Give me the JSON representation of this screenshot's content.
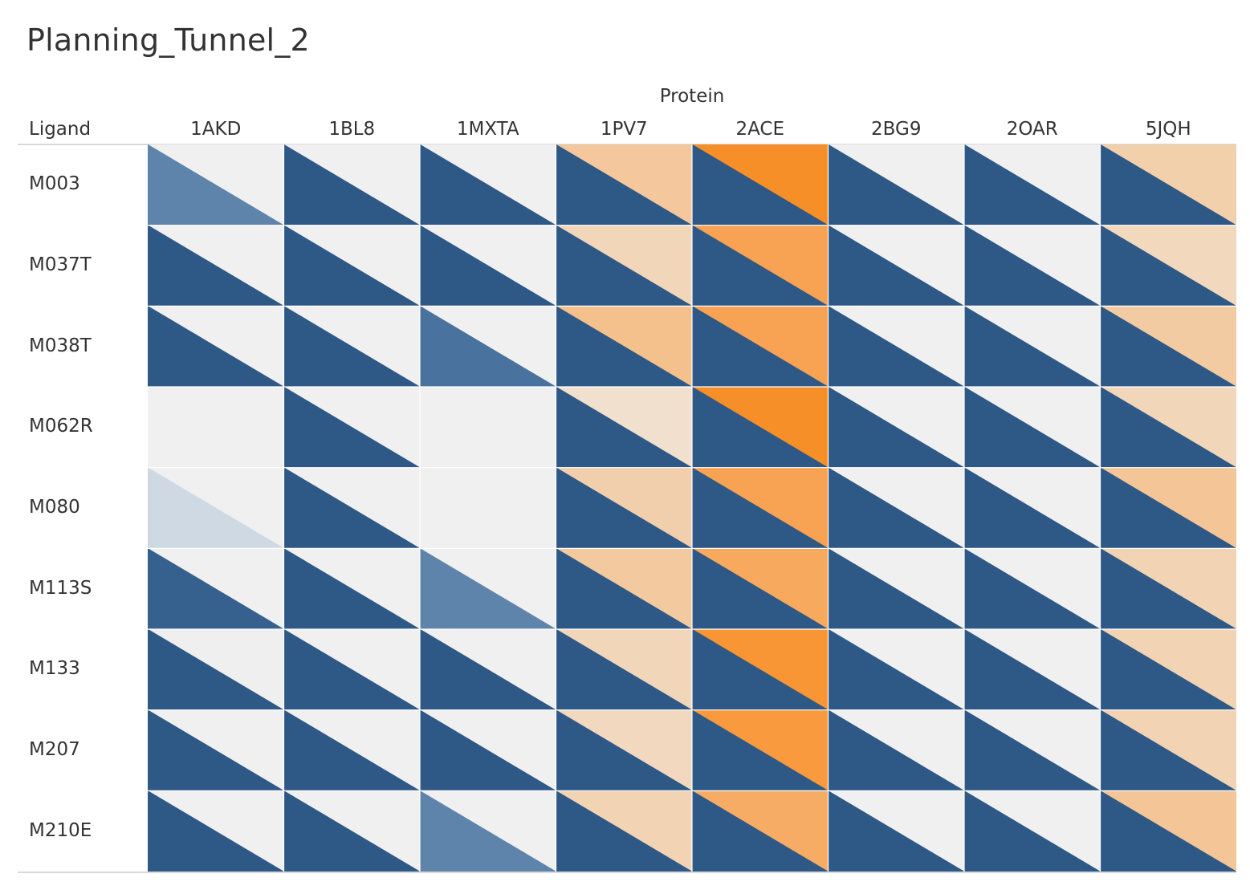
{
  "chart_data": {
    "type": "heatmap",
    "title": "Planning_Tunnel_2",
    "column_header": "Protein",
    "row_header": "Ligand",
    "columns": [
      "1AKD",
      "1BL8",
      "1MXTA",
      "1PV7",
      "2ACE",
      "2BG9",
      "2OAR",
      "5JQH"
    ],
    "rows": [
      "M003",
      "M037T",
      "M038T",
      "M062R",
      "M080",
      "M113S",
      "M133",
      "M207",
      "M210E"
    ],
    "cell_shape": "split diagonally: upper-right triangle = background, lower-left triangle = mark",
    "colors": {
      "blue_full": "#2e5886",
      "blue_medium": "#4a729e",
      "blue_light": "#5f84ab",
      "blue_pale": "#cfd9e3",
      "cell_background": "#f0f0f0",
      "orange_full": "#f78f29",
      "orange_strong": "#f8a052",
      "orange_medium": "#f4c08b",
      "orange_light": "#f2cda5",
      "orange_pale": "#f2dcc4",
      "orange_palest": "#f1e3d5"
    },
    "cells": [
      [
        {
          "upper": "#f0f0f0",
          "lower": "#5f84ab"
        },
        {
          "upper": "#f0f0f0",
          "lower": "#2e5886"
        },
        {
          "upper": "#f0f0f0",
          "lower": "#2e5886"
        },
        {
          "upper": "#f4c79c",
          "lower": "#2e5886"
        },
        {
          "upper": "#f78f29",
          "lower": "#2e5886"
        },
        {
          "upper": "#f0f0f0",
          "lower": "#2e5886"
        },
        {
          "upper": "#f0f0f0",
          "lower": "#2e5886"
        },
        {
          "upper": "#f2d0ac",
          "lower": "#2e5886"
        }
      ],
      [
        {
          "upper": "#f0f0f0",
          "lower": "#2e5886"
        },
        {
          "upper": "#f0f0f0",
          "lower": "#2e5886"
        },
        {
          "upper": "#f0f0f0",
          "lower": "#2e5886"
        },
        {
          "upper": "#f2d6ba",
          "lower": "#2e5886"
        },
        {
          "upper": "#f8a253",
          "lower": "#2e5886"
        },
        {
          "upper": "#f0f0f0",
          "lower": "#2e5886"
        },
        {
          "upper": "#f0f0f0",
          "lower": "#2e5886"
        },
        {
          "upper": "#f2d8bd",
          "lower": "#2e5886"
        }
      ],
      [
        {
          "upper": "#f0f0f0",
          "lower": "#2e5886"
        },
        {
          "upper": "#f0f0f0",
          "lower": "#2e5886"
        },
        {
          "upper": "#f0f0f0",
          "lower": "#4a729e"
        },
        {
          "upper": "#f4c08b",
          "lower": "#2e5886"
        },
        {
          "upper": "#f8a253",
          "lower": "#2e5886"
        },
        {
          "upper": "#f0f0f0",
          "lower": "#2e5886"
        },
        {
          "upper": "#f0f0f0",
          "lower": "#2e5886"
        },
        {
          "upper": "#f3cba2",
          "lower": "#2e5886"
        }
      ],
      [
        {
          "upper": "#f0f0f0",
          "lower": "#f0f0f0"
        },
        {
          "upper": "#f0f0f0",
          "lower": "#2e5886"
        },
        {
          "upper": "#f0f0f0",
          "lower": "#f0f0f0"
        },
        {
          "upper": "#f1e0cd",
          "lower": "#2e5886"
        },
        {
          "upper": "#f78f29",
          "lower": "#2e5886"
        },
        {
          "upper": "#f0f0f0",
          "lower": "#2e5886"
        },
        {
          "upper": "#f0f0f0",
          "lower": "#2e5886"
        },
        {
          "upper": "#f2d6ba",
          "lower": "#2e5886"
        }
      ],
      [
        {
          "upper": "#f0f0f0",
          "lower": "#cfd9e3"
        },
        {
          "upper": "#f0f0f0",
          "lower": "#2e5886"
        },
        {
          "upper": "#f0f0f0",
          "lower": "#f0f0f0"
        },
        {
          "upper": "#f2cfac",
          "lower": "#2e5886"
        },
        {
          "upper": "#f8a253",
          "lower": "#2e5886"
        },
        {
          "upper": "#f0f0f0",
          "lower": "#2e5886"
        },
        {
          "upper": "#f0f0f0",
          "lower": "#2e5886"
        },
        {
          "upper": "#f4c597",
          "lower": "#2e5886"
        }
      ],
      [
        {
          "upper": "#f0f0f0",
          "lower": "#36608d"
        },
        {
          "upper": "#f0f0f0",
          "lower": "#2e5886"
        },
        {
          "upper": "#f0f0f0",
          "lower": "#5f84ab"
        },
        {
          "upper": "#f3c9a0",
          "lower": "#2e5886"
        },
        {
          "upper": "#f7a95e",
          "lower": "#2e5886"
        },
        {
          "upper": "#f0f0f0",
          "lower": "#2e5886"
        },
        {
          "upper": "#f0f0f0",
          "lower": "#2e5886"
        },
        {
          "upper": "#f2d3b3",
          "lower": "#2e5886"
        }
      ],
      [
        {
          "upper": "#efefef",
          "lower": "#2e5886"
        },
        {
          "upper": "#f0f0f0",
          "lower": "#2e5886"
        },
        {
          "upper": "#f0f0f0",
          "lower": "#2e5886"
        },
        {
          "upper": "#f2d6ba",
          "lower": "#2e5886"
        },
        {
          "upper": "#f89636",
          "lower": "#2e5886"
        },
        {
          "upper": "#f0f0f0",
          "lower": "#2e5886"
        },
        {
          "upper": "#f0f0f0",
          "lower": "#2e5886"
        },
        {
          "upper": "#f2d3b3",
          "lower": "#2e5886"
        }
      ],
      [
        {
          "upper": "#f0f0f0",
          "lower": "#2e5886"
        },
        {
          "upper": "#f0f0f0",
          "lower": "#2e5886"
        },
        {
          "upper": "#f0f0f0",
          "lower": "#2e5886"
        },
        {
          "upper": "#f2d8be",
          "lower": "#2e5886"
        },
        {
          "upper": "#f89a3d",
          "lower": "#2e5886"
        },
        {
          "upper": "#f0f0f0",
          "lower": "#2e5886"
        },
        {
          "upper": "#f0f0f0",
          "lower": "#2e5886"
        },
        {
          "upper": "#f2d3b3",
          "lower": "#2e5886"
        }
      ],
      [
        {
          "upper": "#f0f0f0",
          "lower": "#2e5886"
        },
        {
          "upper": "#f0f0f0",
          "lower": "#2e5886"
        },
        {
          "upper": "#f0f0f0",
          "lower": "#5f84ab"
        },
        {
          "upper": "#f2d3b3",
          "lower": "#2e5886"
        },
        {
          "upper": "#f7ac65",
          "lower": "#2e5886"
        },
        {
          "upper": "#f0f0f0",
          "lower": "#2e5886"
        },
        {
          "upper": "#f0f0f0",
          "lower": "#2e5886"
        },
        {
          "upper": "#f4c597",
          "lower": "#2e5886"
        }
      ]
    ]
  }
}
